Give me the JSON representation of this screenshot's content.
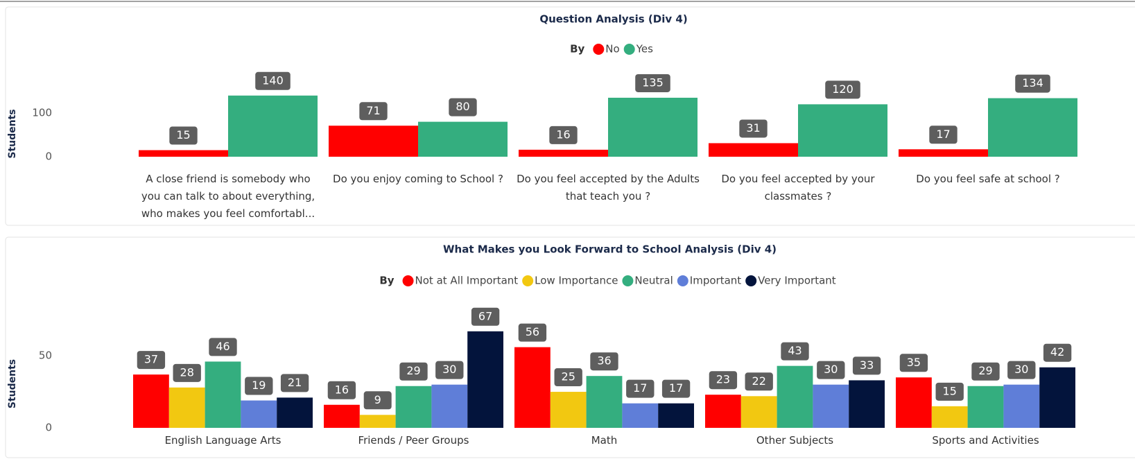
{
  "chart_data": [
    {
      "type": "bar",
      "title": "Question Analysis (Div 4)",
      "legend_title": "By",
      "y_label": "Students",
      "categories": [
        "A close friend is somebody who you can talk to about everything, who makes you feel comfortabl...",
        "Do you enjoy coming to School ?",
        "Do you feel accepted by the Adults that teach you ?",
        "Do you feel accepted by your classmates ?",
        "Do you feel safe at school ?"
      ],
      "series": [
        {
          "name": "No",
          "color": "#ff0000",
          "values": [
            15,
            71,
            16,
            31,
            17
          ]
        },
        {
          "name": "Yes",
          "color": "#34ae7f",
          "values": [
            140,
            80,
            135,
            120,
            134
          ]
        }
      ],
      "ylim": [
        0,
        200
      ],
      "yticks": [
        0,
        100
      ],
      "legend": "top"
    },
    {
      "type": "bar",
      "title": "What Makes you Look Forward to School Analysis (Div 4)",
      "legend_title": "By",
      "y_label": "Students",
      "categories": [
        "English Language Arts",
        "Friends / Peer Groups",
        "Math",
        "Other Subjects",
        "Sports and Activities"
      ],
      "series": [
        {
          "name": "Not at All Important",
          "color": "#ff0000",
          "values": [
            37,
            16,
            56,
            23,
            35
          ]
        },
        {
          "name": "Low Importance",
          "color": "#f2c811",
          "values": [
            28,
            9,
            25,
            22,
            15
          ]
        },
        {
          "name": "Neutral",
          "color": "#34ae7f",
          "values": [
            46,
            29,
            36,
            43,
            29
          ]
        },
        {
          "name": "Important",
          "color": "#5f7ed8",
          "values": [
            19,
            30,
            17,
            30,
            30
          ]
        },
        {
          "name": "Very Important",
          "color": "#03143c",
          "values": [
            21,
            67,
            17,
            33,
            42
          ]
        }
      ],
      "ylim": [
        0,
        90
      ],
      "yticks": [
        0,
        50
      ],
      "legend": "top"
    }
  ]
}
